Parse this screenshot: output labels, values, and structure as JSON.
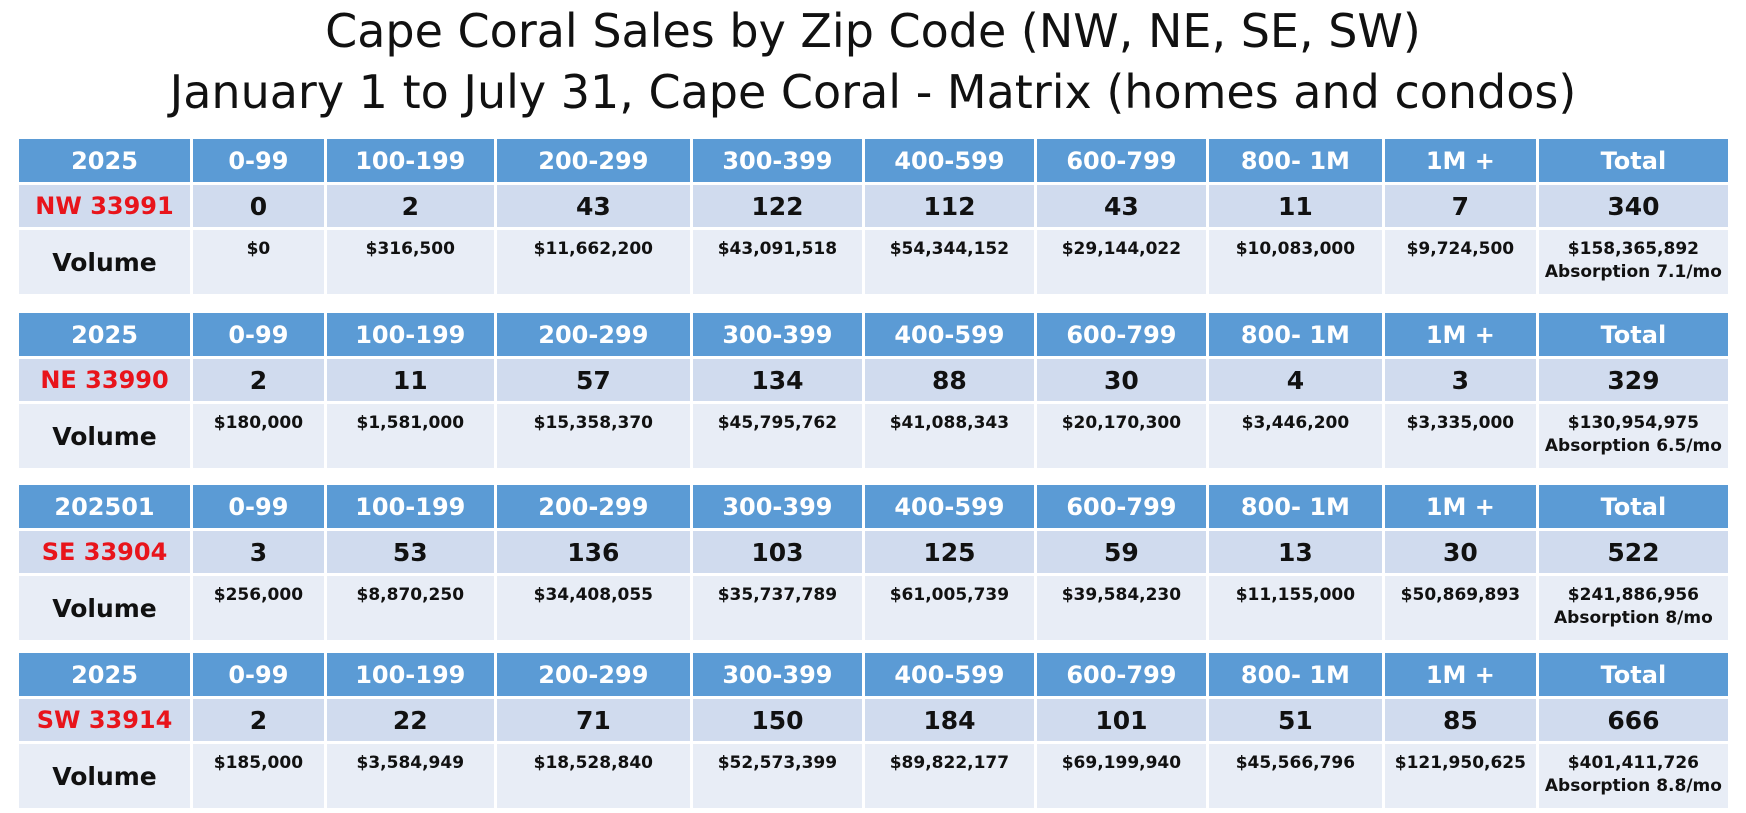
{
  "title_line1": "Cape Coral Sales by Zip Code (NW, NE, SE, SW)",
  "title_line2": "January 1 to July 31, Cape Coral - Matrix (homes and condos)",
  "colors": {
    "header_bg": "#5b9bd5",
    "count_bg": "#d0dbee",
    "volume_bg": "#e8edf6",
    "zip_text": "#e8141b"
  },
  "blocks": [
    {
      "year": "2025",
      "columns": [
        "0-99",
        "100-199",
        "200-299",
        "300-399",
        "400-599",
        "600-799",
        "800- 1M",
        "1M +",
        "Total"
      ],
      "zip": "NW 33991",
      "counts": [
        "0",
        "2",
        "43",
        "122",
        "112",
        "43",
        "11",
        "7",
        "340"
      ],
      "volume_label": "Volume",
      "volumes": [
        "$0",
        "$316,500",
        "$11,662,200",
        "$43,091,518",
        "$54,344,152",
        "$29,144,022",
        "$10,083,000",
        "$9,724,500",
        "$158,365,892"
      ],
      "absorption": "Absorption 7.1/mo"
    },
    {
      "year": "2025",
      "columns": [
        "0-99",
        "100-199",
        "200-299",
        "300-399",
        "400-599",
        "600-799",
        "800- 1M",
        "1M +",
        "Total"
      ],
      "zip": "NE 33990",
      "counts": [
        "2",
        "11",
        "57",
        "134",
        "88",
        "30",
        "4",
        "3",
        "329"
      ],
      "volume_label": "Volume",
      "volumes": [
        "$180,000",
        "$1,581,000",
        "$15,358,370",
        "$45,795,762",
        "$41,088,343",
        "$20,170,300",
        "$3,446,200",
        "$3,335,000",
        "$130,954,975"
      ],
      "absorption": "Absorption 6.5/mo"
    },
    {
      "year": "202501",
      "columns": [
        "0-99",
        "100-199",
        "200-299",
        "300-399",
        "400-599",
        "600-799",
        "800- 1M",
        "1M +",
        "Total"
      ],
      "zip": "SE 33904",
      "counts": [
        "3",
        "53",
        "136",
        "103",
        "125",
        "59",
        "13",
        "30",
        "522"
      ],
      "volume_label": "Volume",
      "volumes": [
        "$256,000",
        "$8,870,250",
        "$34,408,055",
        "$35,737,789",
        "$61,005,739",
        "$39,584,230",
        "$11,155,000",
        "$50,869,893",
        "$241,886,956"
      ],
      "absorption": "Absorption 8/mo"
    },
    {
      "year": "2025",
      "columns": [
        "0-99",
        "100-199",
        "200-299",
        "300-399",
        "400-599",
        "600-799",
        "800- 1M",
        "1M +",
        "Total"
      ],
      "zip": "SW 33914",
      "counts": [
        "2",
        "22",
        "71",
        "150",
        "184",
        "101",
        "51",
        "85",
        "666"
      ],
      "volume_label": "Volume",
      "volumes": [
        "$185,000",
        "$3,584,949",
        "$18,528,840",
        "$52,573,399",
        "$89,822,177",
        "$69,199,940",
        "$45,566,796",
        "$121,950,625",
        "$401,411,726"
      ],
      "absorption": "Absorption 8.8/mo"
    }
  ]
}
